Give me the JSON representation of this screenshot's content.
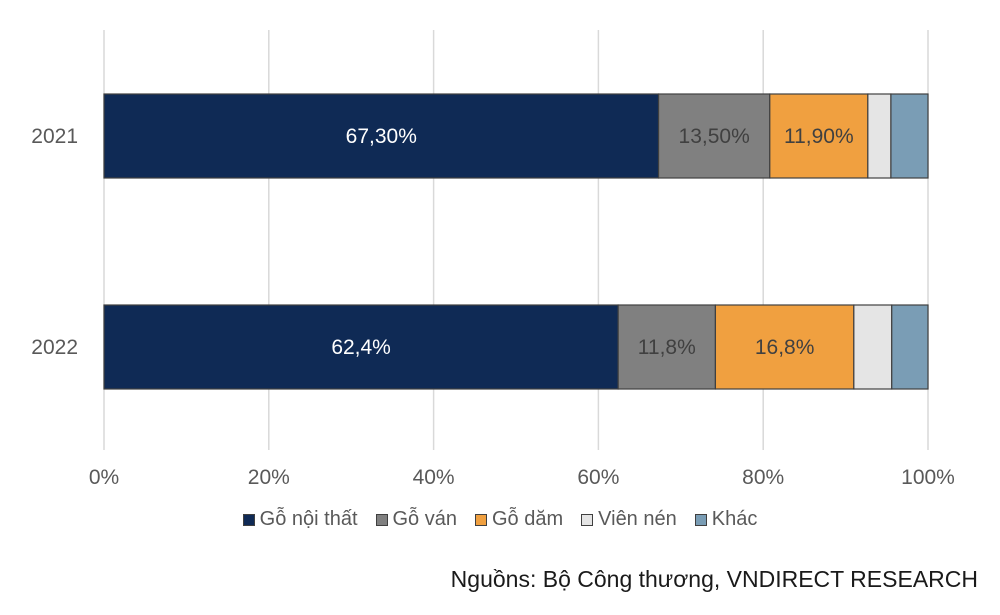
{
  "chart_data": {
    "type": "bar",
    "orientation": "horizontal",
    "stacked": "percent",
    "categories": [
      "2021",
      "2022"
    ],
    "series": [
      {
        "name": "Gỗ nội thất",
        "values": [
          67.3,
          62.4
        ],
        "labels": [
          "67,30%",
          "62,4%"
        ],
        "color": "#0f2a55",
        "label_color": "#ffffff"
      },
      {
        "name": "Gỗ ván",
        "values": [
          13.5,
          11.8
        ],
        "labels": [
          "13,50%",
          "11,8%"
        ],
        "color": "#808080",
        "label_color": "#404040"
      },
      {
        "name": "Gỗ dăm",
        "values": [
          11.9,
          16.8
        ],
        "labels": [
          "11,90%",
          "16,8%"
        ],
        "color": "#f0a040",
        "label_color": "#404040"
      },
      {
        "name": "Viên nén",
        "values": [
          2.8,
          4.6
        ],
        "labels": [
          "",
          ""
        ],
        "color": "#e5e5e5",
        "label_color": "#404040"
      },
      {
        "name": "Khác",
        "values": [
          4.5,
          4.4
        ],
        "labels": [
          "",
          ""
        ],
        "color": "#7a9db5",
        "label_color": "#404040"
      }
    ],
    "x_ticks": [
      "0%",
      "20%",
      "40%",
      "60%",
      "80%",
      "100%"
    ],
    "xlim": [
      0,
      100
    ],
    "grid": true,
    "legend": "bottom",
    "title": "",
    "xlabel": "",
    "ylabel": ""
  },
  "source": "Nguồns: Bộ Công thương, VNDIRECT RESEARCH"
}
